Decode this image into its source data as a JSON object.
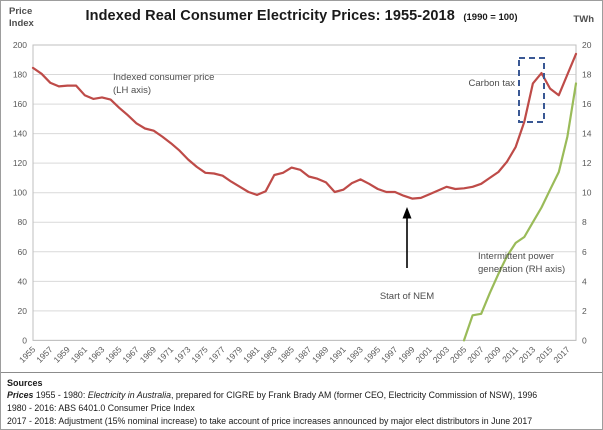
{
  "title": {
    "main": "Indexed Real Consumer Electricity Prices: 1955-2018",
    "suffix": "(1990 = 100)"
  },
  "axes": {
    "left_title_line1": "Price",
    "left_title_line2": "Index",
    "right_title": "TWh"
  },
  "annotations": {
    "consumer_price": "Indexed consumer price (LH axis)",
    "carbon_tax": "Carbon tax",
    "start_of_nem": "Start of NEM",
    "intermittent": "Intermittent power generation (RH axis)"
  },
  "sources": {
    "heading": "Sources",
    "line1_seg1": "Prices",
    "line1_seg2": " 1955 - 1980: ",
    "line1_seg3": "Electricity in Australia",
    "line1_seg4": ", prepared for CIGRE by Frank Brady AM (former CEO, Electricity Commission of NSW), 1996",
    "line2": "1980 - 2016: ABS 6401.0 Consumer Price Index",
    "line3": "2017 - 2018: Adjustment (15% nominal increase) to take account of price increases announced by major elect distributors in June 2017"
  },
  "colors": {
    "price_line": "#BE4B48",
    "generation_line": "#9ABB59",
    "carbon_tax_box": "#3A5894",
    "gridline": "#D9D9D9",
    "plot_border": "#BFBFBF",
    "tick_text": "#595959"
  },
  "chart_data": {
    "type": "line",
    "title": "Indexed Real Consumer Electricity Prices: 1955-2018 (1990 = 100)",
    "x": [
      1955,
      1956,
      1957,
      1958,
      1959,
      1960,
      1961,
      1962,
      1963,
      1964,
      1965,
      1966,
      1967,
      1968,
      1969,
      1970,
      1971,
      1972,
      1973,
      1974,
      1975,
      1976,
      1977,
      1978,
      1979,
      1980,
      1981,
      1982,
      1983,
      1984,
      1985,
      1986,
      1987,
      1988,
      1989,
      1990,
      1991,
      1992,
      1993,
      1994,
      1995,
      1996,
      1997,
      1998,
      1999,
      2000,
      2001,
      2002,
      2003,
      2004,
      2005,
      2006,
      2007,
      2008,
      2009,
      2010,
      2011,
      2012,
      2013,
      2014,
      2015,
      2016,
      2017,
      2018
    ],
    "x_tick_years": [
      1955,
      1957,
      1959,
      1961,
      1963,
      1965,
      1967,
      1969,
      1971,
      1973,
      1975,
      1977,
      1979,
      1981,
      1983,
      1985,
      1987,
      1989,
      1991,
      1993,
      1995,
      1997,
      1999,
      2001,
      2003,
      2005,
      2007,
      2009,
      2011,
      2013,
      2015,
      2017
    ],
    "left_axis": {
      "label": "Price Index",
      "min": 0,
      "max": 200,
      "step": 20,
      "ticks": [
        0,
        20,
        40,
        60,
        80,
        100,
        120,
        140,
        160,
        180,
        200
      ]
    },
    "right_axis": {
      "label": "TWh",
      "min": 0,
      "max": 20,
      "step": 2,
      "ticks": [
        0,
        2,
        4,
        6,
        8,
        10,
        12,
        14,
        16,
        18,
        20
      ]
    },
    "grid": true,
    "legend": "none (labels annotated on plot)",
    "series": [
      {
        "name": "Indexed consumer price (LH axis)",
        "axis": "left",
        "color": "#BE4B48",
        "values": [
          184.5,
          180.5,
          174.5,
          172,
          172.5,
          172.5,
          166,
          163.5,
          164.5,
          163,
          157.5,
          152.5,
          147,
          143.5,
          142,
          138,
          133.5,
          128.5,
          122.5,
          117.5,
          113.5,
          113,
          111.5,
          107.5,
          104,
          100.5,
          98.5,
          101,
          112,
          113.5,
          117,
          115.5,
          111,
          109.5,
          107,
          100.5,
          102,
          106.5,
          109,
          106,
          102.5,
          100.5,
          100.5,
          98,
          96,
          96.5,
          99,
          101.5,
          104,
          102.5,
          103,
          104,
          106,
          110,
          114,
          121,
          131,
          148,
          174,
          181,
          170.5,
          166,
          180,
          194
        ]
      },
      {
        "name": "Intermittent power generation (RH axis)",
        "axis": "right",
        "color": "#9ABB59",
        "values": [
          null,
          null,
          null,
          null,
          null,
          null,
          null,
          null,
          null,
          null,
          null,
          null,
          null,
          null,
          null,
          null,
          null,
          null,
          null,
          null,
          null,
          null,
          null,
          null,
          null,
          null,
          null,
          null,
          null,
          null,
          null,
          null,
          null,
          null,
          null,
          null,
          null,
          null,
          null,
          null,
          null,
          null,
          null,
          null,
          null,
          null,
          null,
          null,
          null,
          null,
          0,
          1.7,
          1.8,
          3.2,
          4.5,
          5.7,
          6.6,
          7.0,
          8.0,
          9.0,
          10.2,
          11.4,
          13.8,
          17.4
        ]
      }
    ]
  }
}
